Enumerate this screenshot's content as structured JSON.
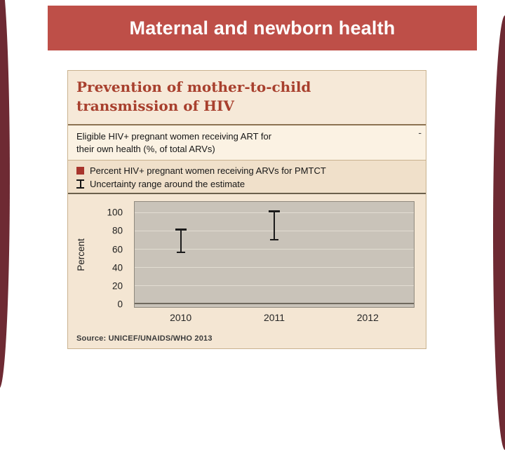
{
  "slide": {
    "title": "Maternal and newborn health"
  },
  "chart": {
    "title_line1": "Prevention of mother-to-child",
    "title_line2": "transmission of HIV",
    "subtitle_line1": "Eligible HIV+ pregnant women receiving ART for",
    "subtitle_line2": "their own health (%, of total ARVs)",
    "trailing_dash": "-",
    "legend": [
      {
        "icon": "red-square",
        "label": "Percent HIV+ pregnant women receiving ARVs for PMTCT"
      },
      {
        "icon": "uncertainty-ibeam",
        "label": "Uncertainty range around the estimate"
      }
    ],
    "source": "Source: UNICEF/UNAIDS/WHO 2013"
  },
  "chart_data": {
    "type": "scatter",
    "categories": [
      "2010",
      "2011",
      "2012"
    ],
    "series": [
      {
        "name": "Uncertainty range around the estimate",
        "low": [
          57,
          71,
          null
        ],
        "high": [
          82,
          102,
          null
        ]
      }
    ],
    "title": "Prevention of mother-to-child transmission of HIV",
    "xlabel": "",
    "ylabel": "Percent",
    "yticks": [
      0,
      20,
      40,
      60,
      80,
      100
    ],
    "ylim": [
      0,
      110
    ],
    "grid": "horizontal",
    "legend_position": "above-chart"
  },
  "colors": {
    "banner": "#BE4F48",
    "edge_bar": "#6E2A33",
    "panel_bg": "#F4E6D3",
    "title_text": "#A8402E",
    "legend_square": "#A8352C",
    "plot_bg": "#C9C3B9",
    "gridline": "#E2DDD2"
  }
}
